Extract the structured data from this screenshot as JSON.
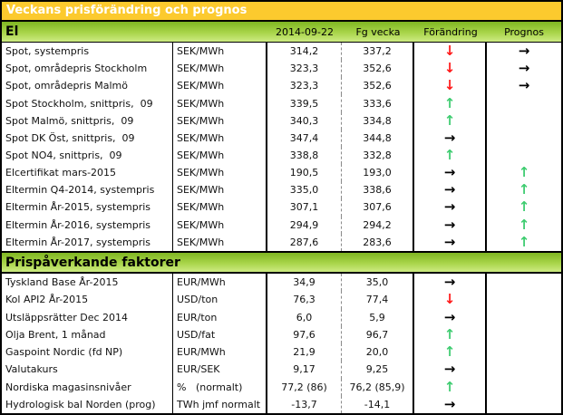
{
  "title": "Veckans prisförändring och prognos",
  "columns": [
    "2014-09-22",
    "Fg vecka",
    "Förändring",
    "Prognos"
  ],
  "icons": {
    "up": "↑",
    "down": "↓",
    "right": "→"
  },
  "colors": {
    "title_bg": "#fcca2e",
    "title_text": "#ffffff",
    "section_green_top": "#7fb622",
    "section_green_bottom": "#cdeb82",
    "arrow_up": "#3ecc70",
    "arrow_down": "#ff1a1a",
    "arrow_right": "#000000"
  },
  "sections": [
    {
      "label": "El",
      "rows": [
        {
          "label": "Spot, systempris",
          "unit": "SEK/MWh",
          "current": "314,2",
          "previous": "337,2",
          "change": "down",
          "forecast": "right"
        },
        {
          "label": "Spot, områdepris Stockholm",
          "unit": "SEK/MWh",
          "current": "323,3",
          "previous": "352,6",
          "change": "down",
          "forecast": "right"
        },
        {
          "label": "Spot, områdepris Malmö",
          "unit": "SEK/MWh",
          "current": "323,3",
          "previous": "352,6",
          "change": "down",
          "forecast": "right"
        },
        {
          "label": "Spot Stockholm, snittpris,  09",
          "unit": "SEK/MWh",
          "current": "339,5",
          "previous": "333,6",
          "change": "up",
          "forecast": ""
        },
        {
          "label": "Spot Malmö, snittpris,  09",
          "unit": "SEK/MWh",
          "current": "340,3",
          "previous": "334,8",
          "change": "up",
          "forecast": ""
        },
        {
          "label": "Spot DK Öst, snittpris,  09",
          "unit": "SEK/MWh",
          "current": "347,4",
          "previous": "344,8",
          "change": "right",
          "forecast": ""
        },
        {
          "label": "Spot NO4, snittpris,  09",
          "unit": "SEK/MWh",
          "current": "338,8",
          "previous": "332,8",
          "change": "up",
          "forecast": ""
        },
        {
          "label": "Elcertifikat mars-2015",
          "unit": "SEK/MWh",
          "current": "190,5",
          "previous": "193,0",
          "change": "right",
          "forecast": "up"
        },
        {
          "label": "Eltermin Q4-2014, systempris",
          "unit": "SEK/MWh",
          "current": "335,0",
          "previous": "338,6",
          "change": "right",
          "forecast": "up"
        },
        {
          "label": "Eltermin År-2015, systempris",
          "unit": "SEK/MWh",
          "current": "307,1",
          "previous": "307,6",
          "change": "right",
          "forecast": "up"
        },
        {
          "label": "Eltermin År-2016, systempris",
          "unit": "SEK/MWh",
          "current": "294,9",
          "previous": "294,2",
          "change": "right",
          "forecast": "up"
        },
        {
          "label": "Eltermin År-2017, systempris",
          "unit": "SEK/MWh",
          "current": "287,6",
          "previous": "283,6",
          "change": "right",
          "forecast": "up"
        }
      ]
    },
    {
      "label": "Prispåverkande faktorer",
      "rows": [
        {
          "label": "Tyskland Base År-2015",
          "unit": "EUR/MWh",
          "current": "34,9",
          "previous": "35,0",
          "change": "right",
          "forecast": ""
        },
        {
          "label": "Kol API2 År-2015",
          "unit": "USD/ton",
          "current": "76,3",
          "previous": "77,4",
          "change": "down",
          "forecast": ""
        },
        {
          "label": "Utsläppsrätter Dec 2014",
          "unit": "EUR/ton",
          "current": "6,0",
          "previous": "5,9",
          "change": "right",
          "forecast": ""
        },
        {
          "label": "Olja Brent, 1 månad",
          "unit": "USD/fat",
          "current": "97,6",
          "previous": "96,7",
          "change": "up",
          "forecast": ""
        },
        {
          "label": "Gaspoint Nordic (fd NP)",
          "unit": "EUR/MWh",
          "current": "21,9",
          "previous": "20,0",
          "change": "up",
          "forecast": ""
        },
        {
          "label": "Valutakurs",
          "unit": "EUR/SEK",
          "current": "9,17",
          "previous": "9,25",
          "change": "right",
          "forecast": ""
        },
        {
          "label": "Nordiska magasinsnivåer",
          "unit": "%   (normalt)",
          "current": "77,2 (86)",
          "previous": "76,2 (85,9)",
          "change": "up",
          "forecast": ""
        },
        {
          "label": "Hydrologisk bal Norden (prog)",
          "unit": "TWh jmf normalt",
          "current": "-13,7",
          "previous": "-14,1",
          "change": "right",
          "forecast": ""
        }
      ]
    }
  ]
}
